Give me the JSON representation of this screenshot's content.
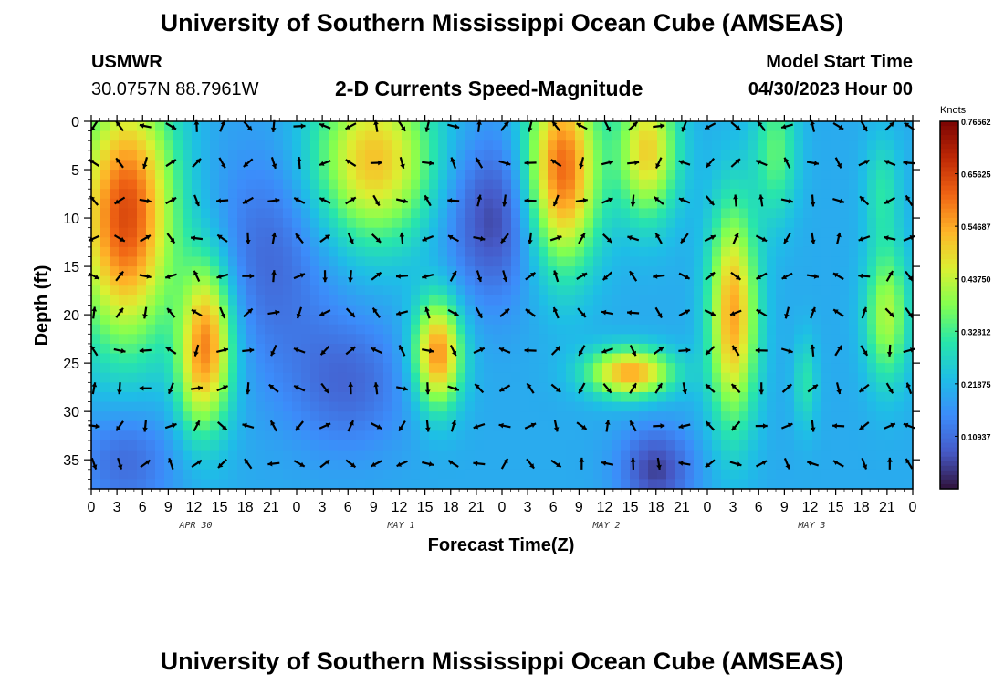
{
  "header": {
    "title": "University of Southern Mississippi Ocean Cube (AMSEAS)",
    "station_name": "USMWR",
    "station_coords": "30.0757N  88.7961W",
    "subtitle": "2-D Currents Speed-Magnitude",
    "model_start_label": "Model Start Time",
    "model_start_value": "04/30/2023 Hour 00",
    "footer_title": "University of Southern Mississippi Ocean Cube (AMSEAS)"
  },
  "chart_data": {
    "type": "heatmap",
    "title": "2-D Currents Speed-Magnitude",
    "xlabel": "Forecast Time(Z)",
    "ylabel": "Depth (ft)",
    "x_range_hours": [
      0,
      96
    ],
    "y_range_ft": [
      0,
      38
    ],
    "y_ticks": [
      "0",
      "5",
      "10",
      "15",
      "20",
      "25",
      "30",
      "35"
    ],
    "y_tick_values": [
      0,
      5,
      10,
      15,
      20,
      25,
      30,
      35
    ],
    "x_tick_labels": [
      "0",
      "3",
      "6",
      "9",
      "12",
      "15",
      "18",
      "21",
      "0",
      "3",
      "6",
      "9",
      "12",
      "15",
      "18",
      "21",
      "0",
      "3",
      "6",
      "9",
      "12",
      "15",
      "18",
      "21",
      "0",
      "3",
      "6",
      "9",
      "12",
      "15",
      "18",
      "21",
      "0"
    ],
    "date_labels": [
      "APR 30",
      "MAY 1",
      "MAY 2",
      "MAY 3"
    ],
    "date_label_hours": [
      12,
      36,
      60,
      84
    ],
    "colorbar": {
      "unit": "Knots",
      "min": 0,
      "max": 0.76562,
      "tick_labels": [
        "0.76562",
        "0.65625",
        "0.54687",
        "0.43750",
        "0.32812",
        "0.21875",
        "0.10937"
      ],
      "tick_values": [
        0.76562,
        0.65625,
        0.54687,
        0.4375,
        0.32812,
        0.21875,
        0.10937
      ]
    },
    "depth_levels_ft": [
      0.5,
      4.3,
      8.2,
      12.1,
      16.0,
      19.8,
      23.7,
      27.6,
      31.5,
      35.4
    ],
    "speed_blobs": [
      {
        "t": 4,
        "d": 10,
        "st": 4,
        "sd": 9,
        "v": 0.64
      },
      {
        "t": 6.5,
        "d": 3,
        "st": 3,
        "sd": 5,
        "v": 0.22
      },
      {
        "t": 13.5,
        "d": 23,
        "st": 2.2,
        "sd": 6,
        "v": 0.58
      },
      {
        "t": 11.5,
        "d": 28,
        "st": 1.3,
        "sd": 4,
        "v": 0.25
      },
      {
        "t": 33,
        "d": 4,
        "st": 5,
        "sd": 6,
        "v": 0.52
      },
      {
        "t": 40.5,
        "d": 24,
        "st": 2,
        "sd": 4,
        "v": 0.58
      },
      {
        "t": 55,
        "d": 5,
        "st": 3,
        "sd": 7,
        "v": 0.62
      },
      {
        "t": 65,
        "d": 3,
        "st": 2.5,
        "sd": 5,
        "v": 0.5
      },
      {
        "t": 63,
        "d": 26,
        "st": 3.5,
        "sd": 1.8,
        "v": 0.55
      },
      {
        "t": 75,
        "d": 20,
        "st": 2,
        "sd": 8,
        "v": 0.55
      },
      {
        "t": 80,
        "d": 3,
        "st": 1.8,
        "sd": 5,
        "v": 0.35
      },
      {
        "t": 83.5,
        "d": 27,
        "st": 1,
        "sd": 3.5,
        "v": 0.3
      },
      {
        "t": 93,
        "d": 20,
        "st": 1.8,
        "sd": 5,
        "v": 0.42
      },
      {
        "t": 92.5,
        "d": 7,
        "st": 1.5,
        "sd": 4,
        "v": 0.3
      },
      {
        "t": 21,
        "d": 14,
        "st": 5,
        "sd": 8,
        "v": 0.1
      },
      {
        "t": 47,
        "d": 10,
        "st": 4,
        "sd": 6,
        "v": 0.05
      },
      {
        "t": 30,
        "d": 27,
        "st": 5,
        "sd": 5,
        "v": 0.1
      },
      {
        "t": 66,
        "d": 36,
        "st": 3,
        "sd": 3,
        "v": 0.05
      },
      {
        "t": 4,
        "d": 35,
        "st": 4,
        "sd": 4,
        "v": 0.1
      }
    ],
    "base_speed": 0.2,
    "arrow_step_hours": 3
  }
}
